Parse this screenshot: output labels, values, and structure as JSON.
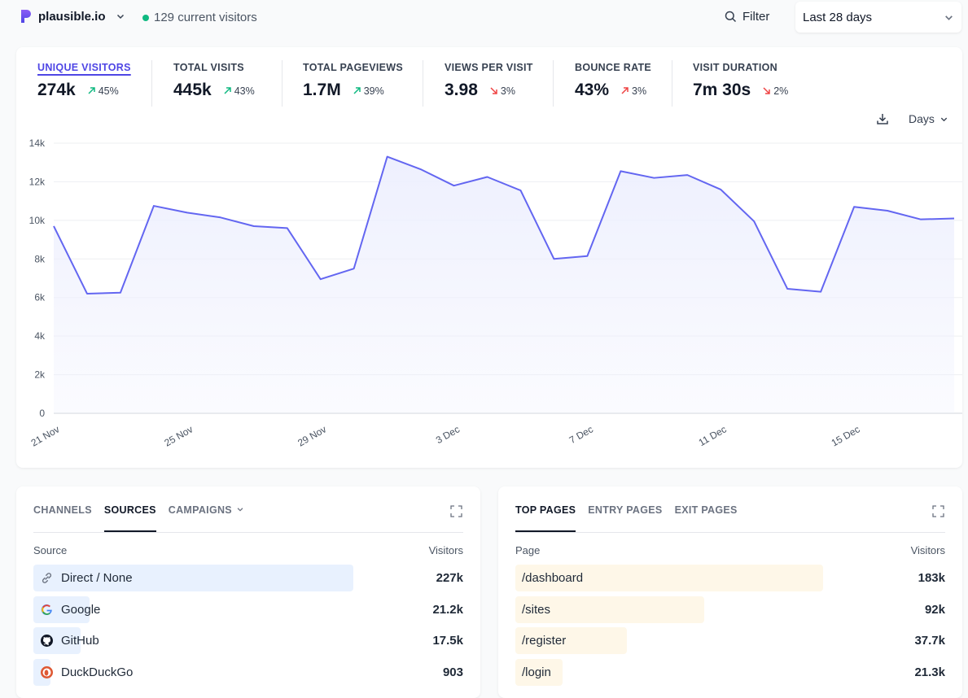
{
  "header": {
    "site_name": "plausible.io",
    "current_visitors": "129 current visitors",
    "filter_label": "Filter",
    "period_label": "Last 28 days"
  },
  "stats": [
    {
      "label": "Unique visitors",
      "value": "274k",
      "change": "45%",
      "direction": "up"
    },
    {
      "label": "Total visits",
      "value": "445k",
      "change": "43%",
      "direction": "up"
    },
    {
      "label": "Total pageviews",
      "value": "1.7M",
      "change": "39%",
      "direction": "up"
    },
    {
      "label": "Views per visit",
      "value": "3.98",
      "change": "3%",
      "direction": "down"
    },
    {
      "label": "Bounce rate",
      "value": "43%",
      "change": "3%",
      "direction": "up"
    },
    {
      "label": "Visit duration",
      "value": "7m 30s",
      "change": "2%",
      "direction": "down"
    }
  ],
  "chart_tools": {
    "interval_label": "Days"
  },
  "chart_data": {
    "type": "area",
    "x": [
      "21 Nov",
      "22 Nov",
      "23 Nov",
      "24 Nov",
      "25 Nov",
      "26 Nov",
      "27 Nov",
      "28 Nov",
      "29 Nov",
      "30 Nov",
      "1 Dec",
      "2 Dec",
      "3 Dec",
      "4 Dec",
      "5 Dec",
      "6 Dec",
      "7 Dec",
      "8 Dec",
      "9 Dec",
      "10 Dec",
      "11 Dec",
      "12 Dec",
      "13 Dec",
      "14 Dec",
      "15 Dec",
      "16 Dec",
      "17 Dec",
      "18 Dec"
    ],
    "x_tick_labels": [
      "21 Nov",
      "25 Nov",
      "29 Nov",
      "3 Dec",
      "7 Dec",
      "11 Dec",
      "15 Dec"
    ],
    "series": [
      {
        "values": [
          9700,
          6200,
          6250,
          10750,
          10400,
          10150,
          9700,
          9600,
          6950,
          7500,
          13300,
          12650,
          11800,
          12250,
          11550,
          8000,
          8150,
          12550,
          12200,
          12350,
          11600,
          9950,
          6450,
          6300,
          10700,
          10500,
          10050,
          10100
        ]
      }
    ],
    "yticks": [
      "0",
      "2k",
      "4k",
      "6k",
      "8k",
      "10k",
      "12k",
      "14k"
    ],
    "ylim": [
      0,
      14000
    ],
    "grid": true,
    "colors": {
      "line": "#6366f1",
      "fill": "#eef0fe"
    }
  },
  "sources": {
    "tabs": [
      {
        "label": "CHANNELS",
        "active": false
      },
      {
        "label": "SOURCES",
        "active": true
      },
      {
        "label": "CAMPAIGNS",
        "active": false
      }
    ],
    "col_left": "Source",
    "col_right": "Visitors",
    "rows": [
      {
        "label": "Direct / None",
        "value": "227k",
        "share": 0.745,
        "icon": "link-icon"
      },
      {
        "label": "Google",
        "value": "21.2k",
        "share": 0.13,
        "icon": "google-icon"
      },
      {
        "label": "GitHub",
        "value": "17.5k",
        "share": 0.11,
        "icon": "github-icon"
      },
      {
        "label": "DuckDuckGo",
        "value": "903",
        "share": 0.04,
        "icon": "duckduckgo-icon"
      }
    ],
    "bar_color": "#e8f1fe"
  },
  "pages": {
    "tabs": [
      {
        "label": "TOP PAGES",
        "active": true
      },
      {
        "label": "ENTRY PAGES",
        "active": false
      },
      {
        "label": "EXIT PAGES",
        "active": false
      }
    ],
    "col_left": "Page",
    "col_right": "Visitors",
    "rows": [
      {
        "label": "/dashboard",
        "value": "183k",
        "share": 0.715
      },
      {
        "label": "/sites",
        "value": "92k",
        "share": 0.44
      },
      {
        "label": "/register",
        "value": "37.7k",
        "share": 0.26
      },
      {
        "label": "/login",
        "value": "21.3k",
        "share": 0.11
      }
    ],
    "bar_color": "#fef7e8"
  }
}
